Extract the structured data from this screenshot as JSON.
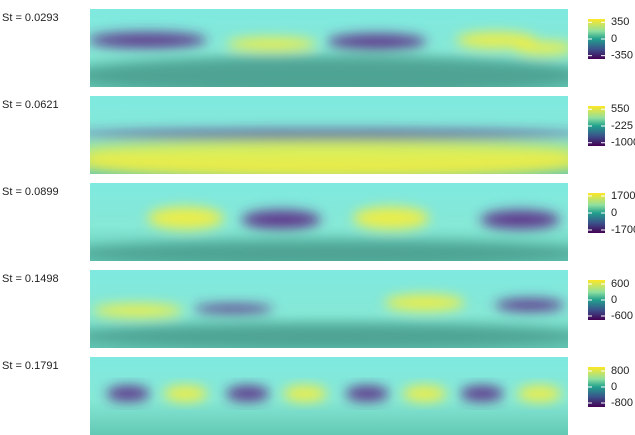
{
  "chart_data": [
    {
      "type": "heatmap",
      "title": "St = 0.0293",
      "clim": [
        -420,
        420
      ],
      "cticks": [
        350,
        0,
        -350
      ]
    },
    {
      "type": "heatmap",
      "title": "St = 0.0621",
      "clim": [
        -1150,
        700
      ],
      "cticks": [
        550,
        -225,
        -1000
      ]
    },
    {
      "type": "heatmap",
      "title": "St = 0.0899",
      "clim": [
        -2000,
        2000
      ],
      "cticks": [
        1700,
        0,
        -1700
      ]
    },
    {
      "type": "heatmap",
      "title": "St = 0.1498",
      "clim": [
        -750,
        750
      ],
      "cticks": [
        600,
        0,
        -600
      ]
    },
    {
      "type": "heatmap",
      "title": "St = 0.1791",
      "clim": [
        -1000,
        1000
      ],
      "cticks": [
        800,
        0,
        -800
      ]
    }
  ]
}
